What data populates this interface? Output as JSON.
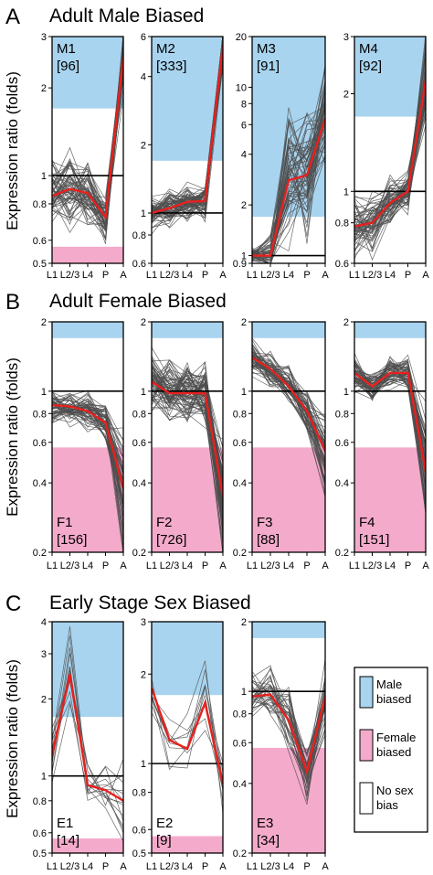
{
  "colors": {
    "male": "#a8d4ef",
    "female": "#f4aacb",
    "trace": "#4d4d4d",
    "mean": "#e8201e"
  },
  "ylabel": "Expression ratio (folds)",
  "x_categories": [
    "L1",
    "L2/3",
    "L4",
    "P",
    "A"
  ],
  "legend": [
    {
      "kind": "male",
      "lines": [
        "Male",
        "biased"
      ]
    },
    {
      "kind": "female",
      "lines": [
        "Female",
        "biased"
      ]
    },
    {
      "kind": "none",
      "lines": [
        "No sex",
        "bias"
      ]
    }
  ],
  "rows": [
    {
      "letter": "A",
      "title": "Adult Male Biased"
    },
    {
      "letter": "B",
      "title": "Adult Female Biased"
    },
    {
      "letter": "C",
      "title": "Early Stage Sex Biased"
    }
  ],
  "chart_data": [
    {
      "type": "line",
      "name": "M1",
      "count": "[96]",
      "scale": "log",
      "ylim": [
        0.5,
        3
      ],
      "ticks": [
        "3",
        "2",
        "1",
        "0.8",
        "0.6",
        "0.5"
      ],
      "tick_values": [
        3,
        2,
        1,
        0.8,
        0.6,
        0.5
      ],
      "male_band_from": 1.7,
      "female_band_to": 0.57,
      "mean": [
        0.85,
        0.9,
        0.87,
        0.72,
        2.55
      ],
      "spread": [
        0.22,
        0.22,
        0.2,
        0.16,
        0.22
      ],
      "n_traces": 60
    },
    {
      "type": "line",
      "name": "M2",
      "count": "[333]",
      "scale": "log",
      "ylim": [
        0.6,
        6
      ],
      "ticks": [
        "6",
        "4",
        "2",
        "1",
        "0.8",
        "0.6"
      ],
      "tick_values": [
        6,
        4,
        2,
        1,
        0.8,
        0.6
      ],
      "male_band_from": 1.7,
      "female_band_to": null,
      "mean": [
        1.0,
        1.05,
        1.12,
        1.13,
        5.5
      ],
      "spread": [
        0.15,
        0.15,
        0.15,
        0.15,
        0.2
      ],
      "n_traces": 70
    },
    {
      "type": "line",
      "name": "M3",
      "count": "[91]",
      "scale": "log",
      "ylim": [
        0.9,
        20
      ],
      "ticks": [
        "20",
        "10",
        "8",
        "6",
        "4",
        "2",
        "1",
        "0.9"
      ],
      "tick_values": [
        20,
        10,
        8,
        6,
        4,
        2,
        1,
        0.9
      ],
      "male_band_from": 1.7,
      "female_band_to": null,
      "mean": [
        1.0,
        1.0,
        2.8,
        3.0,
        6.5
      ],
      "spread": [
        0.08,
        0.3,
        0.7,
        0.7,
        0.6
      ],
      "n_traces": 60
    },
    {
      "type": "line",
      "name": "M4",
      "count": "[92]",
      "scale": "log",
      "ylim": [
        0.6,
        3
      ],
      "ticks": [
        "3",
        "2",
        "1",
        "0.8",
        "0.6"
      ],
      "tick_values": [
        3,
        2,
        1,
        0.8,
        0.6
      ],
      "male_band_from": 1.7,
      "female_band_to": null,
      "mean": [
        0.78,
        0.8,
        0.92,
        1.0,
        2.2
      ],
      "spread": [
        0.2,
        0.2,
        0.15,
        0.12,
        0.25
      ],
      "n_traces": 60
    },
    {
      "type": "line",
      "name": "F1",
      "count": "[156]",
      "scale": "log",
      "ylim": [
        0.2,
        2
      ],
      "ticks": [
        "2",
        "1",
        "0.8",
        "0.6",
        "0.4",
        "0.2"
      ],
      "tick_values": [
        2,
        1,
        0.8,
        0.6,
        0.4,
        0.2
      ],
      "male_band_from": 1.7,
      "female_band_to": 0.57,
      "mean": [
        0.87,
        0.86,
        0.82,
        0.73,
        0.38
      ],
      "spread": [
        0.15,
        0.15,
        0.15,
        0.15,
        0.55
      ],
      "n_traces": 60
    },
    {
      "type": "line",
      "name": "F2",
      "count": "[726]",
      "scale": "log",
      "ylim": [
        0.2,
        2
      ],
      "ticks": [
        "2",
        "1",
        "0.8",
        "0.6",
        "0.4",
        "0.2"
      ],
      "tick_values": [
        2,
        1,
        0.8,
        0.6,
        0.4,
        0.2
      ],
      "male_band_from": 1.7,
      "female_band_to": 0.57,
      "mean": [
        1.1,
        0.98,
        0.98,
        0.98,
        0.35
      ],
      "spread": [
        0.25,
        0.25,
        0.25,
        0.25,
        0.55
      ],
      "n_traces": 80
    },
    {
      "type": "line",
      "name": "F3",
      "count": "[88]",
      "scale": "log",
      "ylim": [
        0.2,
        2
      ],
      "ticks": [
        "2",
        "1",
        "0.8",
        "0.6",
        "0.4",
        "0.2"
      ],
      "tick_values": [
        2,
        1,
        0.8,
        0.6,
        0.4,
        0.2
      ],
      "male_band_from": 1.7,
      "female_band_to": 0.57,
      "mean": [
        1.4,
        1.25,
        1.05,
        0.82,
        0.55
      ],
      "spread": [
        0.15,
        0.15,
        0.15,
        0.18,
        0.35
      ],
      "n_traces": 60
    },
    {
      "type": "line",
      "name": "F4",
      "count": "[151]",
      "scale": "log",
      "ylim": [
        0.2,
        2
      ],
      "ticks": [
        "2",
        "1",
        "0.8",
        "0.6",
        "0.4",
        "0.2"
      ],
      "tick_values": [
        2,
        1,
        0.8,
        0.6,
        0.4,
        0.2
      ],
      "male_band_from": 1.7,
      "female_band_to": 0.57,
      "mean": [
        1.2,
        1.05,
        1.2,
        1.2,
        0.45
      ],
      "spread": [
        0.15,
        0.15,
        0.15,
        0.15,
        0.5
      ],
      "n_traces": 60
    },
    {
      "type": "line",
      "name": "E1",
      "count": "[14]",
      "scale": "log",
      "ylim": [
        0.5,
        4
      ],
      "ticks": [
        "4",
        "3",
        "2",
        "1",
        "0.8",
        "0.6",
        "0.5"
      ],
      "tick_values": [
        4,
        3,
        2,
        1,
        0.8,
        0.6,
        0.5
      ],
      "male_band_from": 1.7,
      "female_band_to": 0.57,
      "mean": [
        1.2,
        2.5,
        0.92,
        0.88,
        0.8
      ],
      "spread": [
        0.2,
        0.3,
        0.2,
        0.2,
        0.3
      ],
      "n_traces": 14
    },
    {
      "type": "line",
      "name": "E2",
      "count": "[9]",
      "scale": "log",
      "ylim": [
        0.5,
        3
      ],
      "ticks": [
        "3",
        "2",
        "1",
        "0.8",
        "0.6",
        "0.5"
      ],
      "tick_values": [
        3,
        2,
        1,
        0.8,
        0.6,
        0.5
      ],
      "male_band_from": 1.7,
      "female_band_to": 0.57,
      "mean": [
        1.8,
        1.2,
        1.12,
        1.6,
        0.85
      ],
      "spread": [
        0.2,
        0.2,
        0.2,
        0.3,
        0.3
      ],
      "n_traces": 9
    },
    {
      "type": "line",
      "name": "E3",
      "count": "[34]",
      "scale": "log",
      "ylim": [
        0.2,
        2
      ],
      "ticks": [
        "2",
        "1",
        "0.8",
        "0.6",
        "0.4",
        "0.2"
      ],
      "tick_values": [
        2,
        1,
        0.8,
        0.6,
        0.4,
        0.2
      ],
      "male_band_from": 1.7,
      "female_band_to": 0.57,
      "mean": [
        0.95,
        0.97,
        0.75,
        0.45,
        0.95
      ],
      "spread": [
        0.2,
        0.25,
        0.3,
        0.25,
        0.3
      ],
      "n_traces": 34
    }
  ]
}
